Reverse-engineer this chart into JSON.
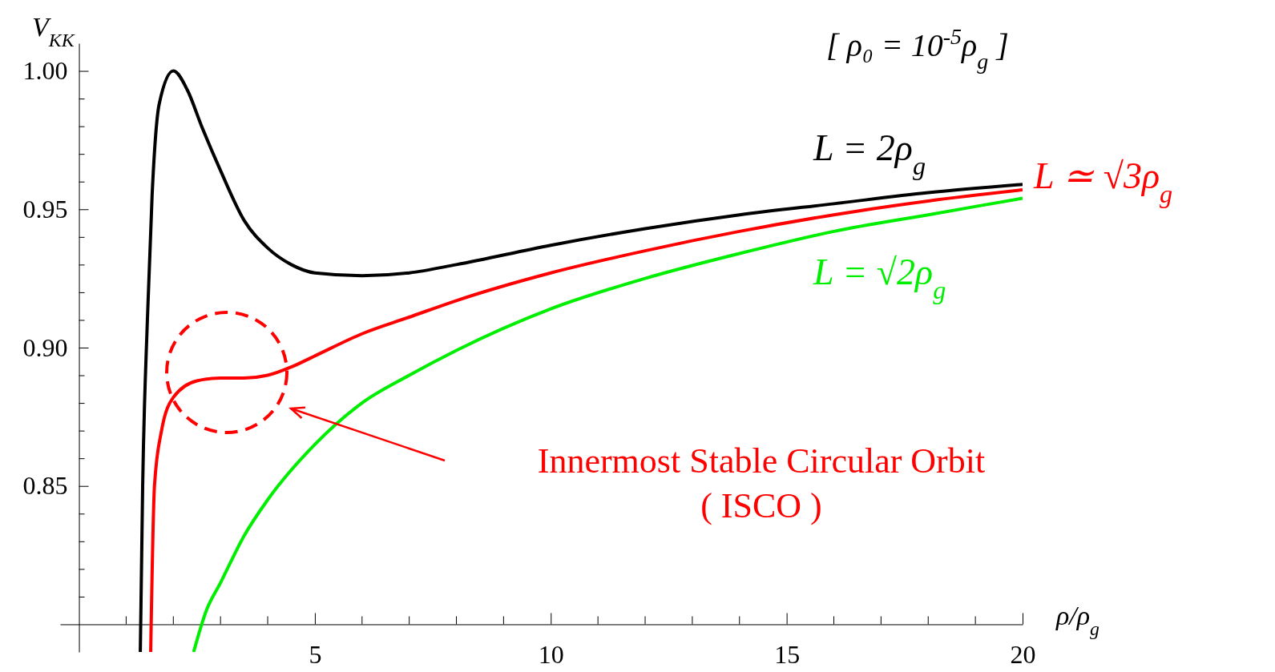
{
  "chart_data": {
    "type": "line",
    "title": "[ ρ₀ = 10$^{-5}$ρ$_{g}$ ]",
    "xlabel": "ρ/ρ$_{g}$",
    "ylabel": "V$_{KK}$",
    "xlim": [
      -0.4,
      20
    ],
    "ylim": [
      0.79,
      1.01
    ],
    "xticks": [
      5,
      10,
      15,
      20
    ],
    "yticks": [
      {
        "value": 0.81,
        "label": null
      },
      {
        "value": 0.82,
        "label": null
      },
      {
        "value": 0.83,
        "label": null
      },
      {
        "value": 0.84,
        "label": null
      },
      0.85,
      {
        "value": 0.86,
        "label": null
      },
      {
        "value": 0.87,
        "label": null
      },
      {
        "value": 0.88,
        "label": null
      },
      {
        "value": 0.89,
        "label": null
      },
      {
        "value": 0.9,
        "label": "0.90"
      },
      {
        "value": 0.91,
        "label": null
      },
      {
        "value": 0.92,
        "label": null
      },
      {
        "value": 0.93,
        "label": null
      },
      {
        "value": 0.94,
        "label": null
      },
      0.95,
      {
        "value": 0.96,
        "label": null
      },
      {
        "value": 0.97,
        "label": null
      },
      {
        "value": 0.98,
        "label": null
      },
      {
        "value": 0.99,
        "label": null
      },
      {
        "value": 1.0,
        "label": "1.00"
      }
    ],
    "grid": false,
    "legend": false,
    "marker": "none",
    "line_style": "solid",
    "series": [
      {
        "name": "L = 2ρ$_{g}$",
        "color": "#000000",
        "x": [
          1.3,
          1.35,
          1.45,
          1.55,
          1.7,
          2.0,
          2.3,
          2.6,
          3,
          3.5,
          4,
          4.5,
          5,
          6,
          7,
          8,
          10,
          12,
          14,
          16,
          18,
          20
        ],
        "values": [
          0.79,
          0.85,
          0.91,
          0.955,
          0.988,
          1.0,
          0.993,
          0.98,
          0.964,
          0.946,
          0.936,
          0.93,
          0.927,
          0.926,
          0.927,
          0.93,
          0.937,
          0.943,
          0.948,
          0.952,
          0.956,
          0.959
        ]
      },
      {
        "name": "L ≃ √3ρ$_{g}$",
        "color": "#ff0000",
        "x": [
          1.52,
          1.6,
          1.75,
          2,
          2.5,
          3,
          3.5,
          4,
          4.5,
          5,
          6,
          7,
          8,
          10,
          12,
          14,
          16,
          18,
          20
        ],
        "values": [
          0.79,
          0.85,
          0.87,
          0.882,
          0.888,
          0.889,
          0.889,
          0.89,
          0.893,
          0.897,
          0.905,
          0.911,
          0.917,
          0.927,
          0.935,
          0.942,
          0.948,
          0.953,
          0.957
        ]
      },
      {
        "name": "L = √2ρ$_{g}$",
        "color": "#00ee00",
        "x": [
          2.43,
          2.7,
          3,
          3.5,
          4,
          5,
          6,
          7,
          8,
          10,
          12,
          14,
          16,
          18,
          20
        ],
        "values": [
          0.79,
          0.805,
          0.815,
          0.832,
          0.845,
          0.865,
          0.88,
          0.89,
          0.899,
          0.914,
          0.925,
          0.934,
          0.942,
          0.948,
          0.954
        ]
      }
    ],
    "annotations": [
      "Innermost Stable Circular Orbit\n( ISCO )"
    ]
  }
}
